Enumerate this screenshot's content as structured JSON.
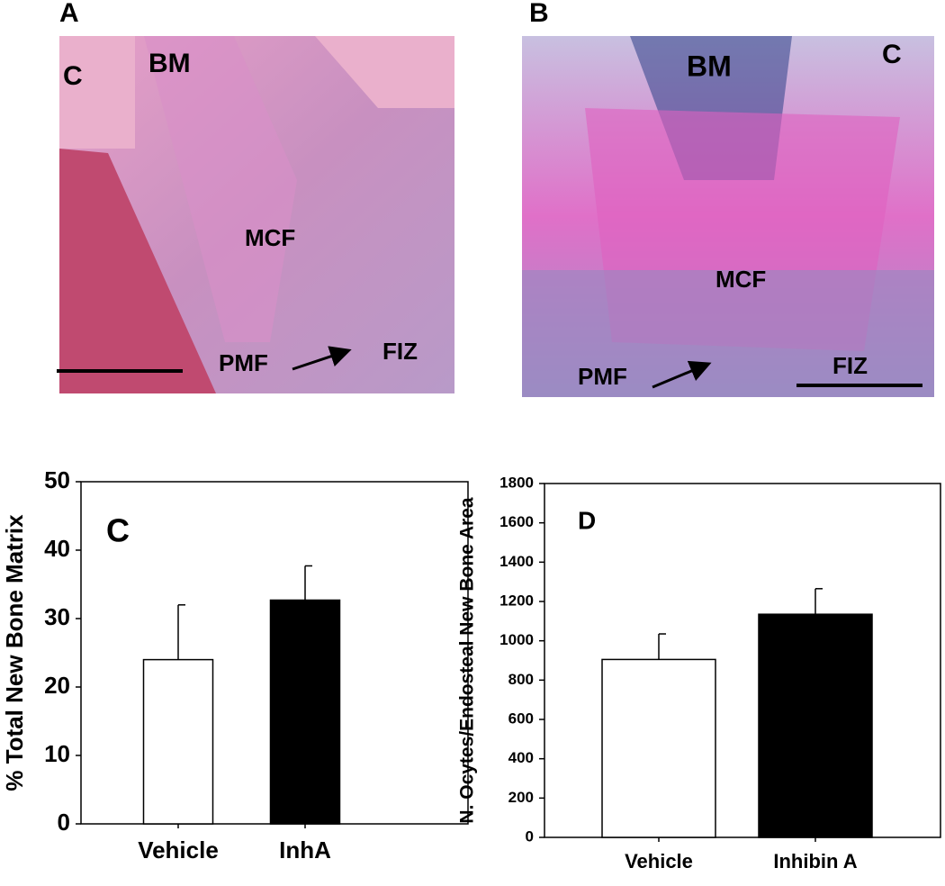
{
  "panels": {
    "a": {
      "letter": "A",
      "labels": [
        "C",
        "BM",
        "MCF",
        "PMF",
        "FIZ"
      ]
    },
    "b": {
      "letter": "B",
      "labels": [
        "BM",
        "C",
        "MCF",
        "PMF",
        "FIZ"
      ]
    }
  },
  "chart_data": [
    {
      "type": "bar",
      "panel_label": "C",
      "y_label": "% Total New Bone Matrix",
      "categories": [
        "Vehicle",
        "InhA"
      ],
      "values": [
        24,
        32.7
      ],
      "errors": [
        8,
        5
      ],
      "colors": [
        "#ffffff",
        "#000000"
      ],
      "ylim": [
        0,
        50
      ],
      "yticks": [
        0,
        10,
        20,
        30,
        40,
        50
      ]
    },
    {
      "type": "bar",
      "panel_label": "D",
      "y_label": "N. Ocytes/Endosteal New Bone Area",
      "categories": [
        "Vehicle",
        "Inhibin A"
      ],
      "values": [
        905,
        1135
      ],
      "errors": [
        130,
        130
      ],
      "colors": [
        "#ffffff",
        "#000000"
      ],
      "ylim": [
        0,
        1800
      ],
      "yticks": [
        0,
        200,
        400,
        600,
        800,
        1000,
        1200,
        1400,
        1600,
        1800
      ]
    }
  ]
}
